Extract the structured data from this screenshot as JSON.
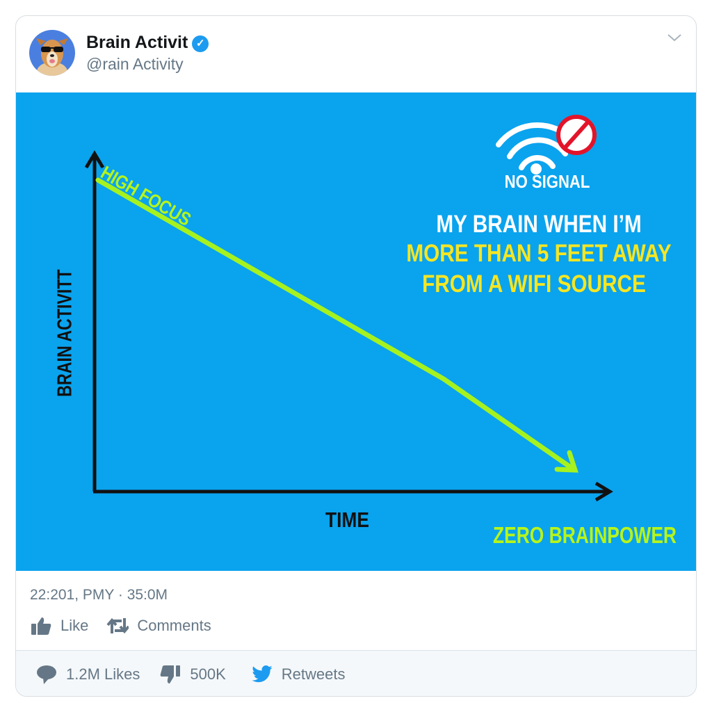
{
  "header": {
    "name": "Brain Activit",
    "handle": "@rain Activity",
    "verified": true,
    "menu_icon": "chevron-down-icon"
  },
  "media": {
    "background": "#0aa3ee",
    "line_color": "#a6f21f",
    "y_axis_label": "BRAIN ACTIVITT",
    "x_axis_label": "TIME",
    "start_label": "HIGH FOCUS",
    "end_label": "ZERO BRAINPOWER",
    "signal_label": "NO SIGNAL",
    "caption": {
      "line1": "MY BRAIN WHEN I’M",
      "line2": "MORE THAN 5 FEET AWAY",
      "line3": "FROM A WIFI SOURCE"
    }
  },
  "meta": {
    "timestamp": "22:201, PMY · 35:0M"
  },
  "actions": {
    "like": "Like",
    "comments": "Comments"
  },
  "footer": {
    "likes": "1.2M Likes",
    "dislikes": "500K",
    "retweets": "Retweets",
    "twitter_color": "#1d9bf0"
  }
}
